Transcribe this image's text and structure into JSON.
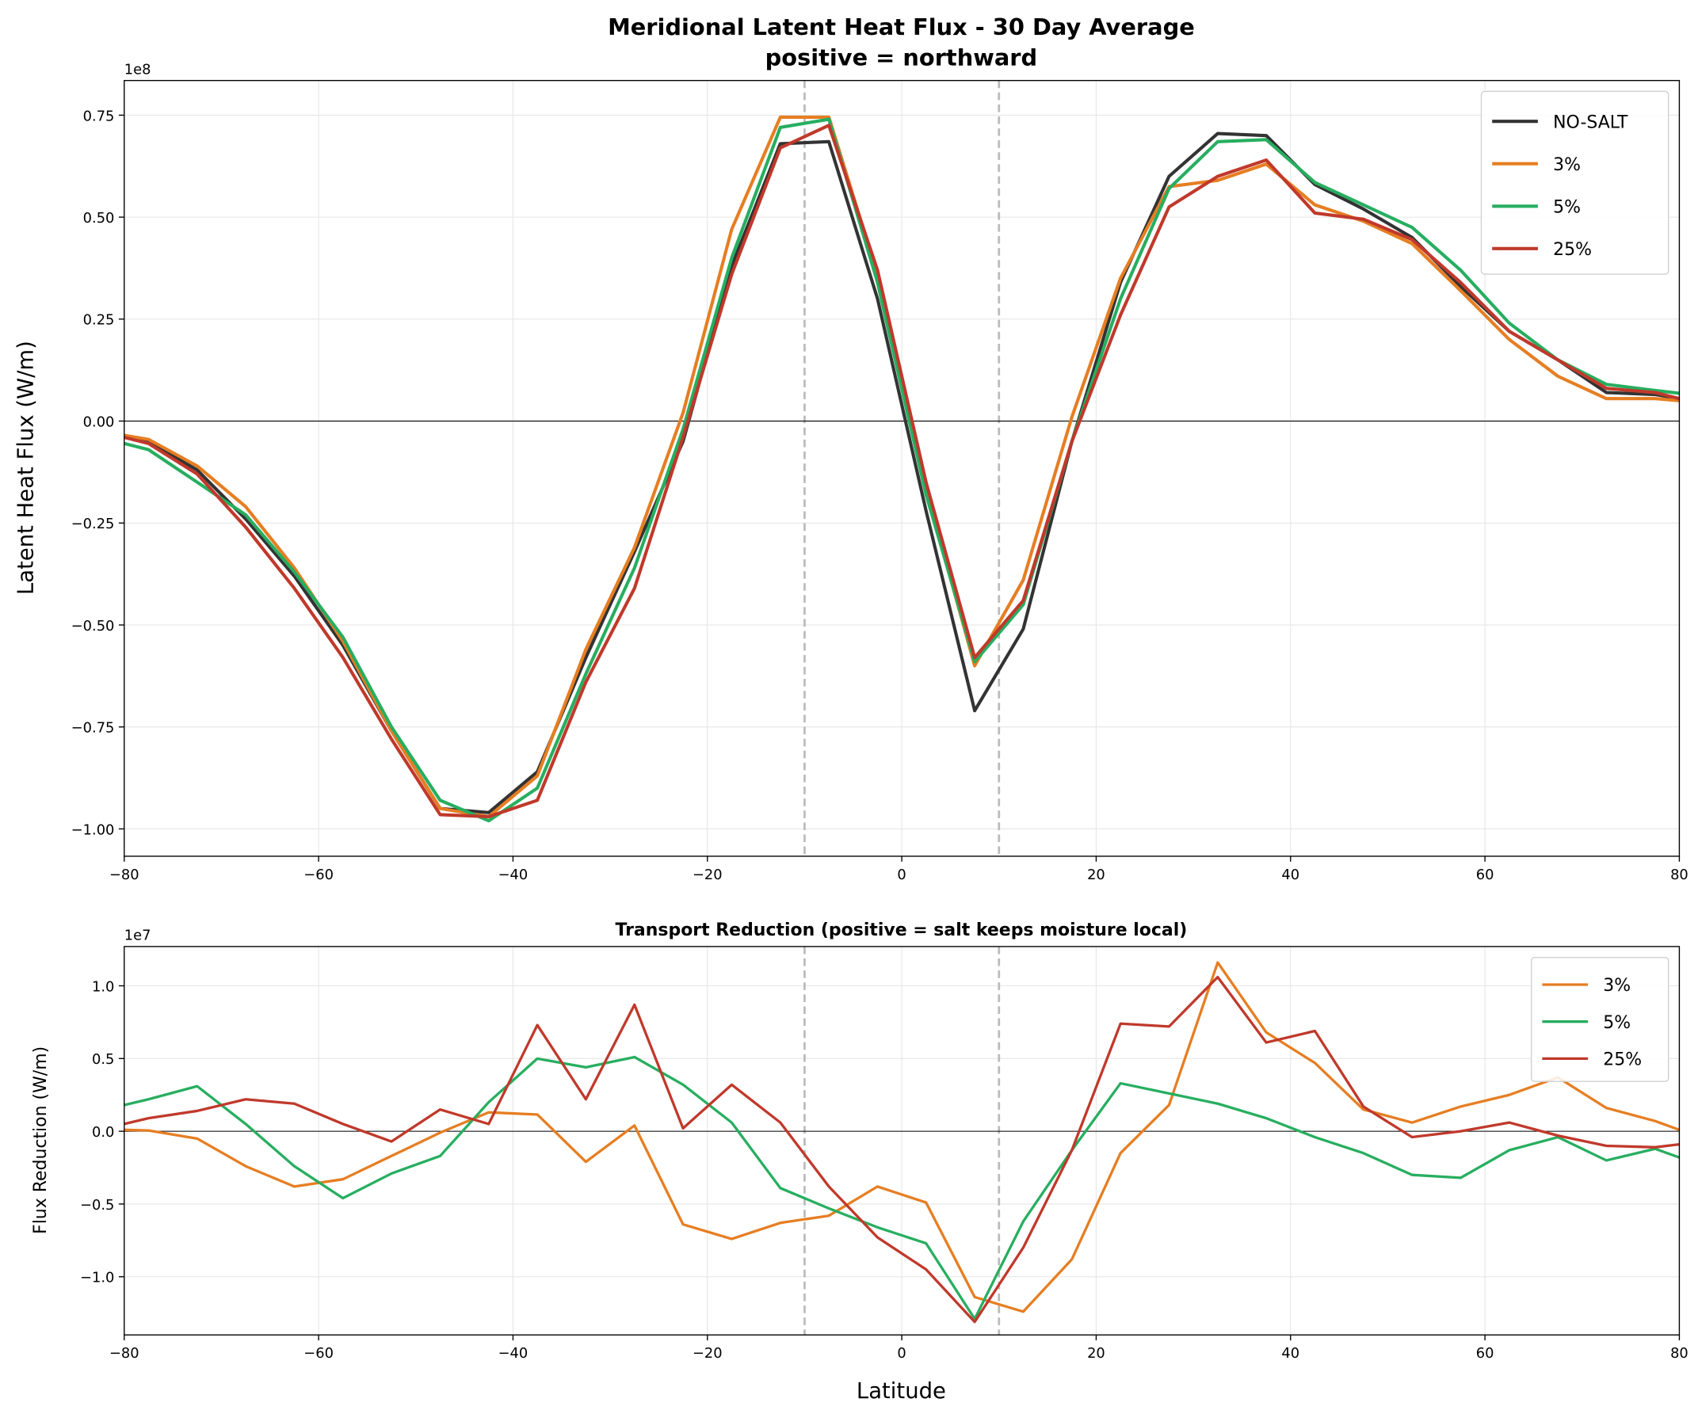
{
  "chart_data": [
    {
      "type": "line",
      "title": "Meridional Latent Heat Flux - 30 Day Average\npositive = northward",
      "title_lines": [
        "Meridional Latent Heat Flux - 30 Day Average",
        "positive = northward"
      ],
      "xlabel": "",
      "ylabel": "Latent Heat Flux (W/m)",
      "y_offset_label": "1e8",
      "xlim": [
        -80,
        80
      ],
      "ylim": [
        -1.067,
        0.835
      ],
      "xticks": [
        -80,
        -60,
        -40,
        -20,
        0,
        20,
        40,
        60,
        80
      ],
      "yticks": [
        -1.0,
        -0.75,
        -0.5,
        -0.25,
        0.0,
        0.25,
        0.5,
        0.75
      ],
      "ytick_labels": [
        "−1.00",
        "−0.75",
        "−0.50",
        "−0.25",
        "0.00",
        "0.25",
        "0.50",
        "0.75"
      ],
      "xtick_labels": [
        "−80",
        "−60",
        "−40",
        "−20",
        "0",
        "20",
        "40",
        "60",
        "80"
      ],
      "grid": true,
      "reference_lines": {
        "horizontal": [
          0
        ],
        "vertical_dashed": [
          -10,
          10
        ]
      },
      "legend_position": "top-right",
      "x": [
        -80,
        -77.5,
        -72.5,
        -67.5,
        -62.5,
        -57.5,
        -52.5,
        -47.5,
        -42.5,
        -37.5,
        -32.5,
        -27.5,
        -22.5,
        -17.5,
        -12.5,
        -7.5,
        -2.5,
        2.5,
        7.5,
        12.5,
        17.5,
        22.5,
        27.5,
        32.5,
        37.5,
        42.5,
        47.5,
        52.5,
        57.5,
        62.5,
        67.5,
        72.5,
        77.5,
        80
      ],
      "series": [
        {
          "name": "NO-SALT",
          "color": "#333333",
          "values": [
            -0.04,
            -0.05,
            -0.12,
            -0.24,
            -0.38,
            -0.55,
            -0.76,
            -0.95,
            -0.96,
            -0.86,
            -0.58,
            -0.32,
            -0.05,
            0.38,
            0.68,
            0.685,
            0.3,
            -0.22,
            -0.71,
            -0.51,
            -0.05,
            0.34,
            0.6,
            0.705,
            0.7,
            0.58,
            0.52,
            0.45,
            0.33,
            0.22,
            0.15,
            0.07,
            0.065,
            0.055
          ]
        },
        {
          "name": "3%",
          "color": "#e67e22",
          "values": [
            -0.035,
            -0.045,
            -0.11,
            -0.21,
            -0.36,
            -0.54,
            -0.76,
            -0.95,
            -0.97,
            -0.87,
            -0.56,
            -0.31,
            0.02,
            0.47,
            0.745,
            0.745,
            0.36,
            -0.17,
            -0.6,
            -0.39,
            0.01,
            0.35,
            0.575,
            0.59,
            0.63,
            0.53,
            0.49,
            0.435,
            0.32,
            0.2,
            0.11,
            0.055,
            0.055,
            0.05
          ]
        },
        {
          "name": "5%",
          "color": "#27ae60",
          "values": [
            -0.055,
            -0.07,
            -0.15,
            -0.23,
            -0.37,
            -0.53,
            -0.75,
            -0.93,
            -0.98,
            -0.9,
            -0.62,
            -0.36,
            -0.02,
            0.4,
            0.72,
            0.74,
            0.34,
            -0.18,
            -0.59,
            -0.45,
            -0.05,
            0.3,
            0.57,
            0.685,
            0.69,
            0.585,
            0.53,
            0.475,
            0.37,
            0.24,
            0.15,
            0.09,
            0.075,
            0.068
          ]
        },
        {
          "name": "25%",
          "color": "#c0392b",
          "values": [
            -0.04,
            -0.055,
            -0.13,
            -0.26,
            -0.41,
            -0.58,
            -0.78,
            -0.965,
            -0.97,
            -0.93,
            -0.64,
            -0.41,
            -0.04,
            0.36,
            0.67,
            0.725,
            0.37,
            -0.15,
            -0.58,
            -0.44,
            -0.05,
            0.26,
            0.525,
            0.6,
            0.64,
            0.51,
            0.495,
            0.445,
            0.34,
            0.22,
            0.15,
            0.08,
            0.07,
            0.055
          ]
        }
      ]
    },
    {
      "type": "line",
      "title": "Transport Reduction (positive = salt keeps moisture local)",
      "xlabel": "Latitude",
      "ylabel": "Flux Reduction (W/m)",
      "y_offset_label": "1e7",
      "xlim": [
        -80,
        80
      ],
      "ylim": [
        -1.4,
        1.27
      ],
      "xticks": [
        -80,
        -60,
        -40,
        -20,
        0,
        20,
        40,
        60,
        80
      ],
      "xtick_labels": [
        "−80",
        "−60",
        "−40",
        "−20",
        "0",
        "20",
        "40",
        "60",
        "80"
      ],
      "yticks": [
        -1.0,
        -0.5,
        0.0,
        0.5,
        1.0
      ],
      "ytick_labels": [
        "−1.0",
        "−0.5",
        "0.0",
        "0.5",
        "1.0"
      ],
      "grid": true,
      "reference_lines": {
        "horizontal": [
          0
        ],
        "vertical_dashed": [
          -10,
          10
        ]
      },
      "legend_position": "top-right",
      "x": [
        -80,
        -77.5,
        -72.5,
        -67.5,
        -62.5,
        -57.5,
        -52.5,
        -47.5,
        -42.5,
        -37.5,
        -32.5,
        -27.5,
        -22.5,
        -17.5,
        -12.5,
        -7.5,
        -2.5,
        2.5,
        7.5,
        12.5,
        17.5,
        22.5,
        27.5,
        32.5,
        37.5,
        42.5,
        47.5,
        52.5,
        57.5,
        62.5,
        67.5,
        72.5,
        77.5,
        80
      ],
      "series": [
        {
          "name": "3%",
          "color": "#e67e22",
          "values": [
            0.01,
            0.005,
            -0.05,
            -0.24,
            -0.38,
            -0.33,
            -0.17,
            -0.01,
            0.13,
            0.115,
            -0.21,
            0.04,
            -0.64,
            -0.74,
            -0.63,
            -0.58,
            -0.38,
            -0.49,
            -1.14,
            -1.24,
            -0.88,
            -0.15,
            0.18,
            1.16,
            0.68,
            0.47,
            0.15,
            0.06,
            0.17,
            0.25,
            0.37,
            0.16,
            0.07,
            0.01
          ]
        },
        {
          "name": "5%",
          "color": "#27ae60",
          "values": [
            0.18,
            0.22,
            0.31,
            0.05,
            -0.24,
            -0.46,
            -0.29,
            -0.17,
            0.2,
            0.5,
            0.44,
            0.51,
            0.32,
            0.06,
            -0.39,
            -0.53,
            -0.66,
            -0.77,
            -1.29,
            -0.62,
            -0.13,
            0.33,
            0.26,
            0.19,
            0.09,
            -0.04,
            -0.15,
            -0.3,
            -0.32,
            -0.13,
            -0.04,
            -0.2,
            -0.12,
            -0.18
          ]
        },
        {
          "name": "25%",
          "color": "#c0392b",
          "values": [
            0.05,
            0.09,
            0.14,
            0.22,
            0.19,
            0.05,
            -0.07,
            0.15,
            0.05,
            0.73,
            0.22,
            0.87,
            0.02,
            0.32,
            0.06,
            -0.38,
            -0.73,
            -0.95,
            -1.31,
            -0.8,
            -0.13,
            0.74,
            0.72,
            1.06,
            0.61,
            0.69,
            0.17,
            -0.04,
            0.0,
            0.06,
            -0.03,
            -0.1,
            -0.11,
            -0.09
          ]
        }
      ]
    }
  ]
}
